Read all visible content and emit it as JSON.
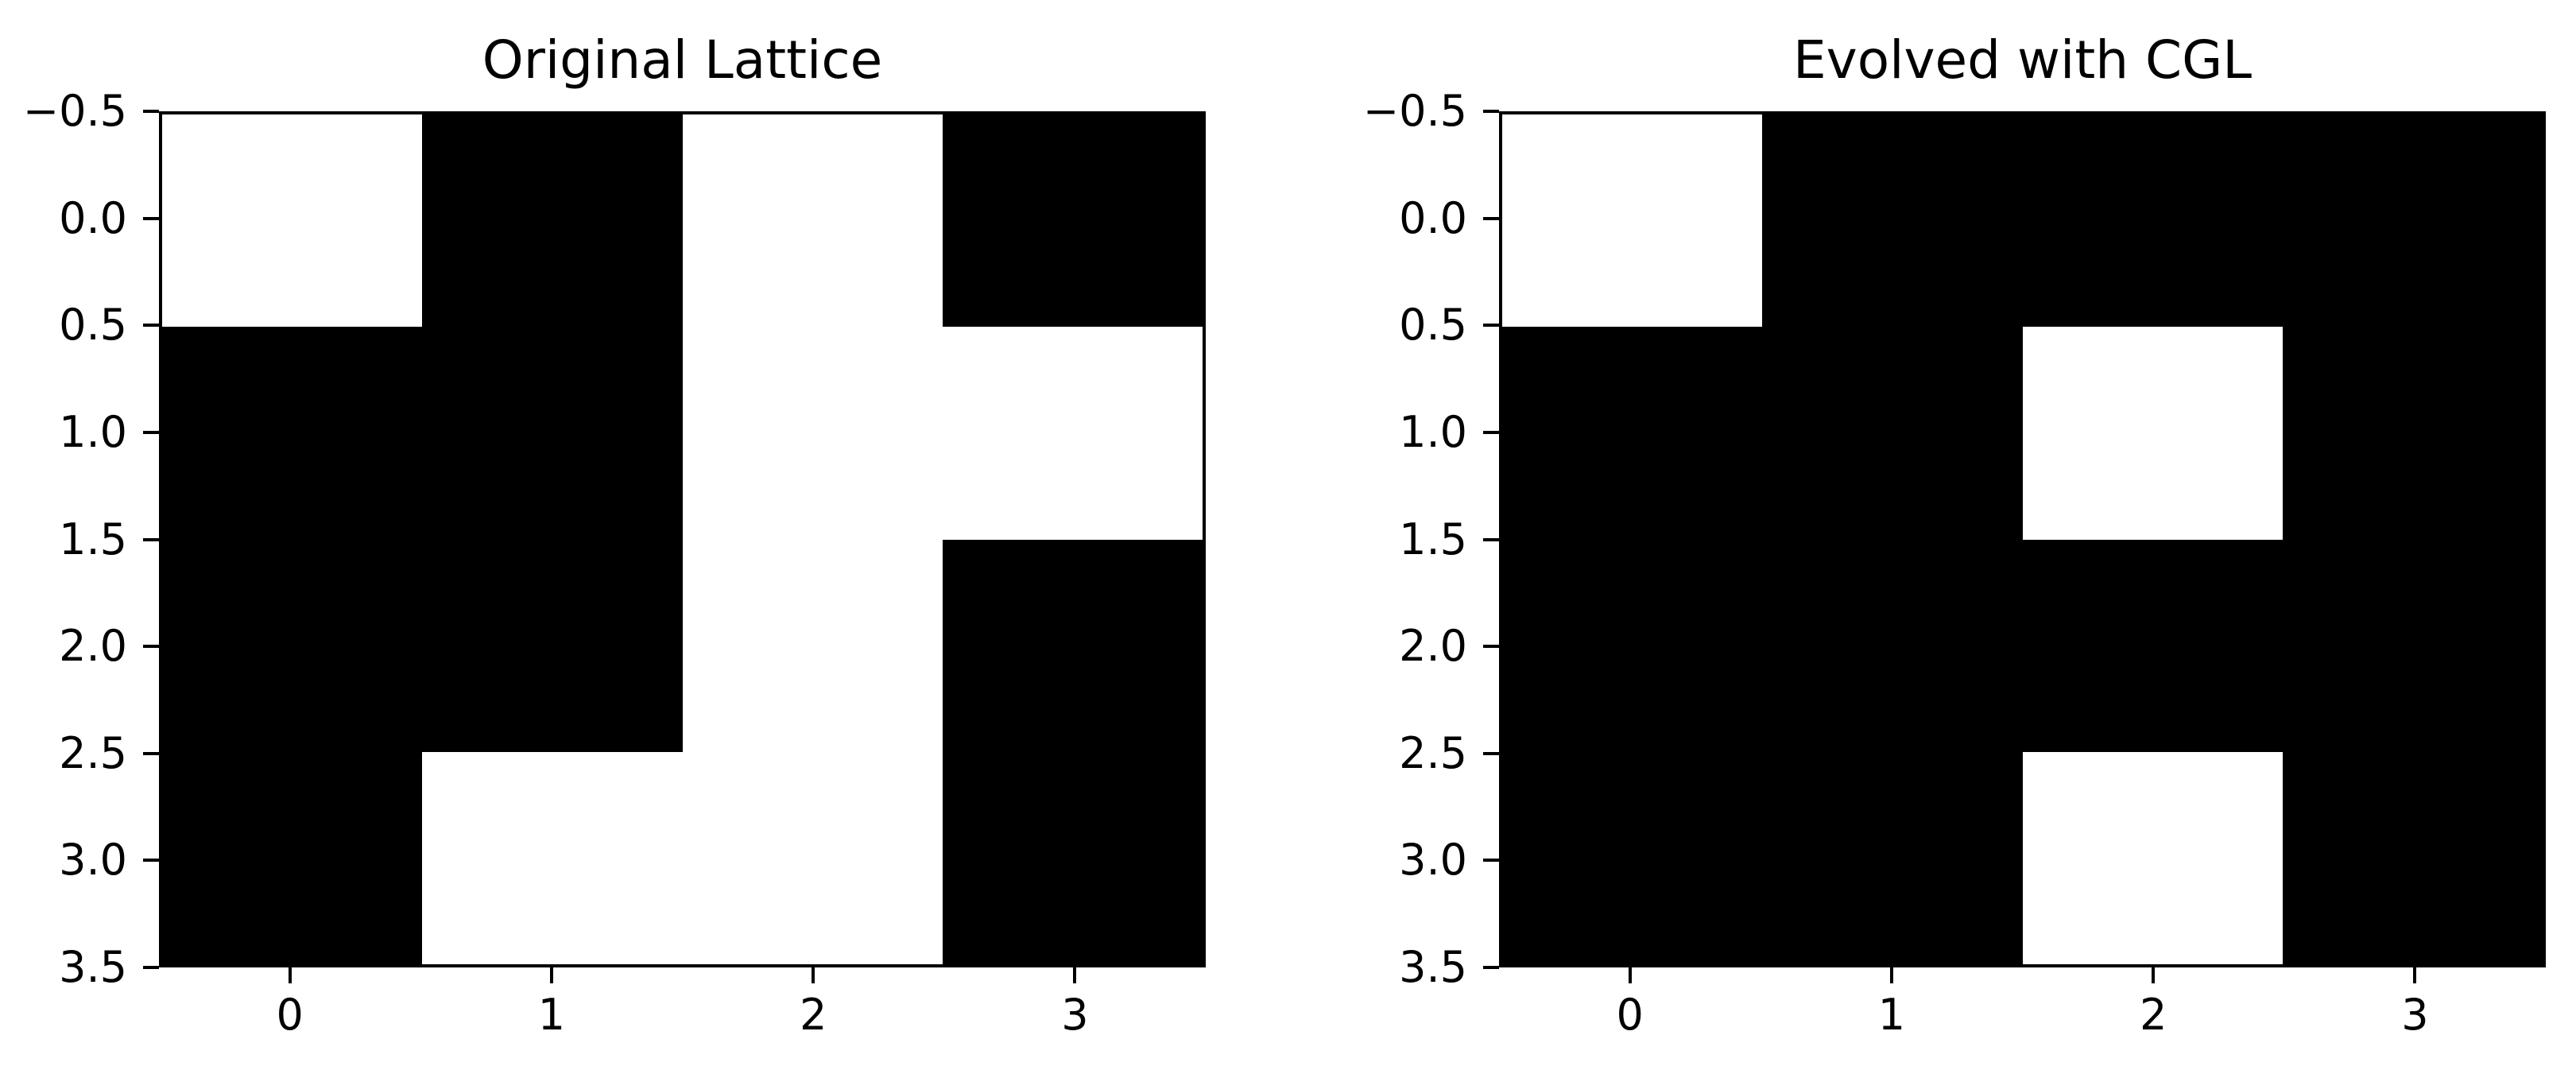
{
  "figure": {
    "background_color": "#ffffff",
    "text_color": "#000000"
  },
  "chart_data": [
    {
      "type": "heatmap",
      "title": "Original Lattice",
      "xlabel": "",
      "ylabel": "",
      "xlim": [
        -0.5,
        3.5
      ],
      "ylim": [
        -0.5,
        3.5
      ],
      "y_axis_inverted": true,
      "grid_lines": false,
      "legend": false,
      "x_tick_labels": [
        "0",
        "1",
        "2",
        "3"
      ],
      "y_tick_labels": [
        "−0.5",
        "0.0",
        "0.5",
        "1.0",
        "1.5",
        "2.0",
        "2.5",
        "3.0",
        "3.5"
      ],
      "value_colors": {
        "0": "#ffffff",
        "1": "#000000"
      },
      "grid": [
        [
          0,
          1,
          0,
          1
        ],
        [
          1,
          1,
          0,
          0
        ],
        [
          1,
          1,
          0,
          1
        ],
        [
          1,
          0,
          0,
          1
        ]
      ]
    },
    {
      "type": "heatmap",
      "title": "Evolved with CGL",
      "xlabel": "",
      "ylabel": "",
      "xlim": [
        -0.5,
        3.5
      ],
      "ylim": [
        -0.5,
        3.5
      ],
      "y_axis_inverted": true,
      "grid_lines": false,
      "legend": false,
      "x_tick_labels": [
        "0",
        "1",
        "2",
        "3"
      ],
      "y_tick_labels": [
        "−0.5",
        "0.0",
        "0.5",
        "1.0",
        "1.5",
        "2.0",
        "2.5",
        "3.0",
        "3.5"
      ],
      "value_colors": {
        "0": "#ffffff",
        "1": "#000000"
      },
      "grid": [
        [
          0,
          1,
          1,
          1
        ],
        [
          1,
          1,
          0,
          1
        ],
        [
          1,
          1,
          1,
          1
        ],
        [
          1,
          1,
          0,
          1
        ]
      ]
    }
  ]
}
